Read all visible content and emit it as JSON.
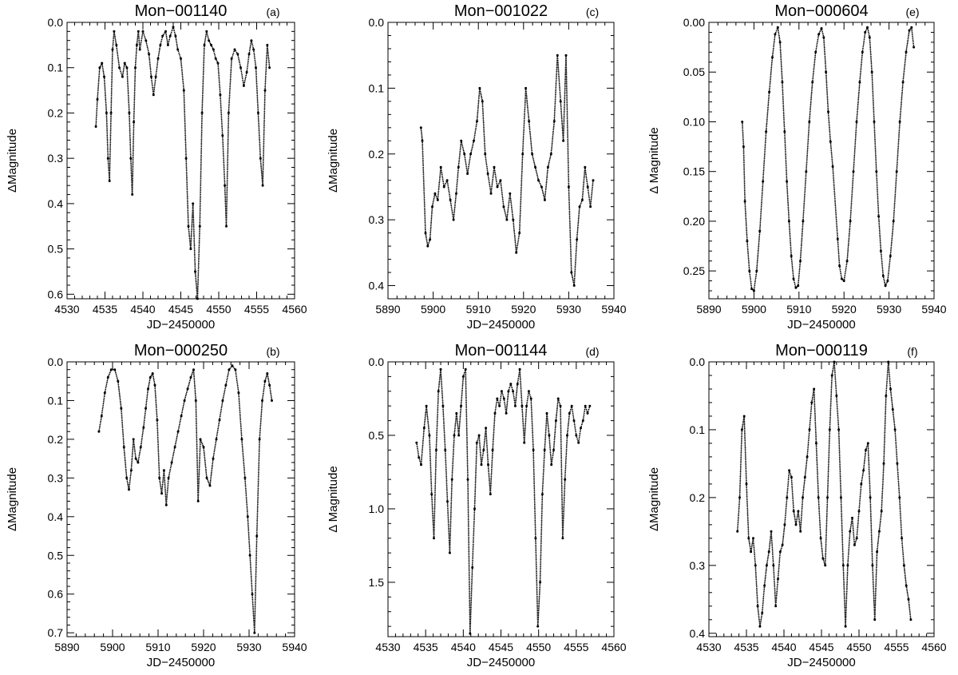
{
  "chart_data": [
    {
      "type": "scatter",
      "tag": "(a)",
      "title": "Mon−001140",
      "xlabel": "JD−2450000",
      "ylabel": "ΔMagnitude",
      "xlim": [
        4530,
        4560
      ],
      "ylim": [
        0.61,
        0.0
      ],
      "y_inverted": true,
      "xticks": [
        "4530",
        "4535",
        "4540",
        "4545",
        "4550",
        "4555",
        "4560"
      ],
      "yticks": [
        "0.0",
        "0.1",
        "0.2",
        "0.3",
        "0.4",
        "0.5",
        "0.6"
      ],
      "xtick_values": [
        4530,
        4535,
        4540,
        4545,
        4550,
        4555,
        4560
      ],
      "ytick_values": [
        0.0,
        0.1,
        0.2,
        0.3,
        0.4,
        0.5,
        0.6
      ],
      "x": [
        4533.8,
        4534.0,
        4534.3,
        4534.6,
        4534.9,
        4535.2,
        4535.4,
        4535.6,
        4535.8,
        4536.0,
        4536.2,
        4536.5,
        4536.9,
        4537.3,
        4537.6,
        4537.9,
        4538.2,
        4538.4,
        4538.6,
        4538.8,
        4539.0,
        4539.2,
        4539.4,
        4539.6,
        4540.0,
        4540.4,
        4540.8,
        4541.1,
        4541.4,
        4541.7,
        4542.0,
        4542.3,
        4542.6,
        4543.0,
        4543.3,
        4543.6,
        4544.0,
        4544.3,
        4544.6,
        4545.0,
        4545.4,
        4545.7,
        4546.0,
        4546.3,
        4546.6,
        4546.9,
        4547.2,
        4547.5,
        4547.8,
        4548.1,
        4548.4,
        4548.7,
        4549.0,
        4549.3,
        4549.6,
        4549.9,
        4550.2,
        4550.5,
        4550.8,
        4551.0,
        4551.3,
        4551.7,
        4552.1,
        4552.5,
        4552.9,
        4553.3,
        4553.7,
        4554.0,
        4554.3,
        4554.6,
        4554.9,
        4555.2,
        4555.5,
        4555.8,
        4556.1,
        4556.4,
        4556.7
      ],
      "y": [
        0.23,
        0.17,
        0.1,
        0.09,
        0.12,
        0.2,
        0.3,
        0.35,
        0.2,
        0.06,
        0.02,
        0.05,
        0.1,
        0.12,
        0.09,
        0.1,
        0.2,
        0.3,
        0.38,
        0.22,
        0.1,
        0.05,
        0.02,
        0.06,
        0.02,
        0.04,
        0.07,
        0.12,
        0.16,
        0.12,
        0.08,
        0.05,
        0.03,
        0.02,
        0.05,
        0.03,
        0.01,
        0.03,
        0.06,
        0.08,
        0.15,
        0.3,
        0.45,
        0.5,
        0.4,
        0.55,
        0.61,
        0.45,
        0.2,
        0.05,
        0.02,
        0.04,
        0.05,
        0.06,
        0.08,
        0.09,
        0.16,
        0.25,
        0.36,
        0.45,
        0.2,
        0.08,
        0.06,
        0.07,
        0.1,
        0.14,
        0.11,
        0.07,
        0.04,
        0.06,
        0.1,
        0.2,
        0.3,
        0.36,
        0.15,
        0.05,
        0.1
      ]
    },
    {
      "type": "scatter",
      "tag": "(b)",
      "title": "Mon−000250",
      "xlabel": "JD−2450000",
      "ylabel": "ΔMagnitude",
      "xlim": [
        5890,
        5940
      ],
      "ylim": [
        0.71,
        0.0
      ],
      "y_inverted": true,
      "xticks": [
        "5890",
        "5900",
        "5910",
        "5920",
        "5930",
        "5940"
      ],
      "yticks": [
        "0.0",
        "0.1",
        "0.2",
        "0.3",
        "0.4",
        "0.5",
        "0.6",
        "0.7"
      ],
      "xtick_values": [
        5890,
        5900,
        5910,
        5920,
        5930,
        5940
      ],
      "ytick_values": [
        0.0,
        0.1,
        0.2,
        0.3,
        0.4,
        0.5,
        0.6,
        0.7
      ],
      "x": [
        5897.0,
        5897.6,
        5898.3,
        5899.0,
        5899.7,
        5900.5,
        5901.2,
        5901.9,
        5902.5,
        5903.1,
        5903.6,
        5904.1,
        5904.6,
        5905.1,
        5905.6,
        5906.2,
        5906.8,
        5907.3,
        5907.8,
        5908.3,
        5908.8,
        5909.3,
        5909.8,
        5910.3,
        5910.8,
        5911.3,
        5911.8,
        5912.3,
        5913.0,
        5913.7,
        5914.4,
        5915.1,
        5915.8,
        5916.5,
        5917.2,
        5917.8,
        5918.3,
        5918.8,
        5919.3,
        5920.0,
        5920.7,
        5921.4,
        5922.1,
        5922.8,
        5923.5,
        5924.2,
        5924.9,
        5925.6,
        5926.3,
        5927.0,
        5927.7,
        5928.4,
        5929.1,
        5929.7,
        5930.2,
        5930.7,
        5931.2,
        5931.7,
        5932.3,
        5932.9,
        5933.5,
        5934.0,
        5934.5,
        5935.0
      ],
      "y": [
        0.18,
        0.14,
        0.08,
        0.04,
        0.02,
        0.02,
        0.05,
        0.12,
        0.22,
        0.3,
        0.33,
        0.28,
        0.2,
        0.25,
        0.26,
        0.22,
        0.17,
        0.12,
        0.07,
        0.04,
        0.03,
        0.06,
        0.15,
        0.3,
        0.34,
        0.28,
        0.37,
        0.3,
        0.26,
        0.22,
        0.18,
        0.14,
        0.1,
        0.07,
        0.04,
        0.02,
        0.1,
        0.36,
        0.2,
        0.22,
        0.3,
        0.32,
        0.25,
        0.2,
        0.15,
        0.1,
        0.06,
        0.02,
        0.01,
        0.02,
        0.08,
        0.2,
        0.3,
        0.4,
        0.5,
        0.6,
        0.7,
        0.45,
        0.2,
        0.1,
        0.05,
        0.03,
        0.06,
        0.1
      ]
    },
    {
      "type": "scatter",
      "tag": "(c)",
      "title": "Mon−001022",
      "xlabel": "JD−2450000",
      "ylabel": "ΔMagnitude",
      "xlim": [
        5890,
        5940
      ],
      "ylim": [
        0.42,
        0.0
      ],
      "y_inverted": true,
      "xticks": [
        "5890",
        "5900",
        "5910",
        "5920",
        "5930",
        "5940"
      ],
      "yticks": [
        "0.0",
        "0.1",
        "0.2",
        "0.3",
        "0.4"
      ],
      "xtick_values": [
        5890,
        5900,
        5910,
        5920,
        5930,
        5940
      ],
      "ytick_values": [
        0.0,
        0.1,
        0.2,
        0.3,
        0.4
      ],
      "x": [
        5897.3,
        5897.6,
        5898.3,
        5898.8,
        5899.3,
        5899.8,
        5900.4,
        5901.0,
        5901.7,
        5902.4,
        5903.1,
        5903.8,
        5904.5,
        5905.1,
        5905.6,
        5906.2,
        5906.9,
        5907.6,
        5908.3,
        5909.0,
        5909.7,
        5910.3,
        5910.9,
        5911.5,
        5912.1,
        5912.8,
        5913.5,
        5914.2,
        5914.9,
        5915.6,
        5916.3,
        5917.0,
        5917.7,
        5918.4,
        5919.1,
        5919.8,
        5920.5,
        5921.2,
        5921.9,
        5922.6,
        5923.3,
        5924.0,
        5924.7,
        5925.4,
        5926.1,
        5926.8,
        5927.5,
        5928.2,
        5928.8,
        5929.4,
        5930.0,
        5930.6,
        5931.2,
        5931.8,
        5932.4,
        5933.0,
        5933.6,
        5934.2,
        5934.8,
        5935.4
      ],
      "y": [
        0.16,
        0.18,
        0.32,
        0.34,
        0.33,
        0.28,
        0.26,
        0.27,
        0.22,
        0.25,
        0.24,
        0.27,
        0.3,
        0.26,
        0.22,
        0.18,
        0.2,
        0.23,
        0.2,
        0.18,
        0.15,
        0.1,
        0.12,
        0.2,
        0.23,
        0.26,
        0.22,
        0.25,
        0.24,
        0.28,
        0.3,
        0.26,
        0.3,
        0.35,
        0.32,
        0.2,
        0.1,
        0.15,
        0.2,
        0.22,
        0.24,
        0.25,
        0.27,
        0.22,
        0.2,
        0.15,
        0.05,
        0.12,
        0.18,
        0.05,
        0.25,
        0.38,
        0.4,
        0.33,
        0.28,
        0.27,
        0.22,
        0.25,
        0.28,
        0.24
      ]
    },
    {
      "type": "scatter",
      "tag": "(d)",
      "title": "Mon−001144",
      "xlabel": "JD−2450000",
      "ylabel": "Δ Magnitude",
      "xlim": [
        4530,
        4560
      ],
      "ylim": [
        1.87,
        0.0
      ],
      "y_inverted": true,
      "xticks": [
        "4530",
        "4535",
        "4540",
        "4545",
        "4550",
        "4555",
        "4560"
      ],
      "yticks": [
        "0.0",
        "0.5",
        "1.0",
        "1.5"
      ],
      "xtick_values": [
        4530,
        4535,
        4540,
        4545,
        4550,
        4555,
        4560
      ],
      "ytick_values": [
        0.0,
        0.5,
        1.0,
        1.5
      ],
      "x": [
        4533.8,
        4534.1,
        4534.4,
        4534.8,
        4535.1,
        4535.5,
        4535.8,
        4536.1,
        4536.4,
        4536.7,
        4537.0,
        4537.3,
        4537.6,
        4537.9,
        4538.2,
        4538.5,
        4538.8,
        4539.1,
        4539.4,
        4539.7,
        4540.0,
        4540.3,
        4540.6,
        4540.9,
        4541.2,
        4541.5,
        4541.8,
        4542.1,
        4542.4,
        4542.7,
        4543.0,
        4543.3,
        4543.6,
        4543.9,
        4544.2,
        4544.5,
        4544.8,
        4545.1,
        4545.4,
        4545.7,
        4546.0,
        4546.3,
        4546.6,
        4546.9,
        4547.2,
        4547.5,
        4547.8,
        4548.1,
        4548.4,
        4548.7,
        4549.0,
        4549.3,
        4549.6,
        4549.9,
        4550.2,
        4550.5,
        4550.8,
        4551.1,
        4551.4,
        4551.7,
        4552.0,
        4552.3,
        4552.6,
        4552.9,
        4553.2,
        4553.5,
        4553.8,
        4554.1,
        4554.4,
        4554.7,
        4555.0,
        4555.3,
        4555.6,
        4555.9,
        4556.2,
        4556.5,
        4556.8
      ],
      "y": [
        0.55,
        0.65,
        0.7,
        0.45,
        0.3,
        0.5,
        0.9,
        1.2,
        0.6,
        0.2,
        0.05,
        0.3,
        0.6,
        0.95,
        1.3,
        0.8,
        0.5,
        0.35,
        0.5,
        0.3,
        0.1,
        0.05,
        0.8,
        1.85,
        1.4,
        1.0,
        0.55,
        0.5,
        0.7,
        0.6,
        0.45,
        0.7,
        0.9,
        0.6,
        0.35,
        0.25,
        0.3,
        0.2,
        0.25,
        0.35,
        0.2,
        0.15,
        0.2,
        0.3,
        0.15,
        0.05,
        0.3,
        0.55,
        0.3,
        0.2,
        0.25,
        0.6,
        1.2,
        1.8,
        1.5,
        0.9,
        0.6,
        0.35,
        0.5,
        0.7,
        0.6,
        0.4,
        0.25,
        0.3,
        1.2,
        0.8,
        0.5,
        0.35,
        0.3,
        0.4,
        0.5,
        0.55,
        0.45,
        0.4,
        0.3,
        0.35,
        0.3
      ]
    },
    {
      "type": "scatter",
      "tag": "(e)",
      "title": "Mon−000604",
      "xlabel": "JD−2450000",
      "ylabel": "Δ Magnitude",
      "xlim": [
        5890,
        5940
      ],
      "ylim": [
        0.278,
        0.0
      ],
      "y_inverted": true,
      "xticks": [
        "5890",
        "5900",
        "5910",
        "5920",
        "5930",
        "5940"
      ],
      "yticks": [
        "0.00",
        "0.05",
        "0.10",
        "0.15",
        "0.20",
        "0.25"
      ],
      "xtick_values": [
        5890,
        5900,
        5910,
        5920,
        5930,
        5940
      ],
      "ytick_values": [
        0.0,
        0.05,
        0.1,
        0.15,
        0.2,
        0.25
      ],
      "x": [
        5897.4,
        5897.7,
        5898.0,
        5898.5,
        5899.0,
        5899.5,
        5900.0,
        5900.6,
        5901.3,
        5902.0,
        5902.7,
        5903.4,
        5904.1,
        5904.7,
        5905.3,
        5905.8,
        5906.3,
        5906.8,
        5907.3,
        5907.8,
        5908.3,
        5908.8,
        5909.3,
        5909.8,
        5910.3,
        5910.9,
        5911.6,
        5912.3,
        5913.0,
        5913.7,
        5914.4,
        5915.0,
        5915.5,
        5916.0,
        5916.5,
        5917.0,
        5917.5,
        5918.6,
        5919.0,
        5919.5,
        5920.0,
        5920.7,
        5921.4,
        5922.1,
        5922.8,
        5923.5,
        5924.1,
        5924.7,
        5925.2,
        5925.7,
        5926.2,
        5926.7,
        5927.2,
        5927.7,
        5928.2,
        5928.7,
        5929.2,
        5929.7,
        5930.3,
        5931.0,
        5931.7,
        5932.4,
        5933.1,
        5933.8,
        5934.5,
        5935.0,
        5935.5
      ],
      "y": [
        0.1,
        0.125,
        0.18,
        0.22,
        0.25,
        0.268,
        0.27,
        0.25,
        0.21,
        0.16,
        0.11,
        0.07,
        0.035,
        0.012,
        0.005,
        0.02,
        0.06,
        0.11,
        0.16,
        0.2,
        0.235,
        0.258,
        0.267,
        0.265,
        0.24,
        0.2,
        0.15,
        0.1,
        0.06,
        0.03,
        0.012,
        0.006,
        0.015,
        0.05,
        0.09,
        0.12,
        0.145,
        0.218,
        0.245,
        0.258,
        0.26,
        0.24,
        0.2,
        0.15,
        0.1,
        0.06,
        0.03,
        0.01,
        0.005,
        0.015,
        0.05,
        0.1,
        0.15,
        0.195,
        0.23,
        0.255,
        0.265,
        0.26,
        0.235,
        0.2,
        0.15,
        0.1,
        0.06,
        0.03,
        0.008,
        0.005,
        0.025
      ]
    },
    {
      "type": "scatter",
      "tag": "(f)",
      "title": "Mon−000119",
      "xlabel": "JD−2450000",
      "ylabel": "ΔMagnitude",
      "xlim": [
        4530,
        4560
      ],
      "ylim": [
        0.405,
        0.0
      ],
      "y_inverted": true,
      "xticks": [
        "4530",
        "4535",
        "4540",
        "4545",
        "4550",
        "4555",
        "4560"
      ],
      "yticks": [
        "0.0",
        "0.1",
        "0.2",
        "0.3",
        "0.4"
      ],
      "xtick_values": [
        4530,
        4535,
        4540,
        4545,
        4550,
        4555,
        4560
      ],
      "ytick_values": [
        0.0,
        0.1,
        0.2,
        0.3,
        0.4
      ],
      "x": [
        4533.8,
        4534.1,
        4534.4,
        4534.7,
        4535.0,
        4535.3,
        4535.6,
        4535.9,
        4536.2,
        4536.5,
        4536.8,
        4537.1,
        4537.4,
        4537.7,
        4538.0,
        4538.3,
        4538.6,
        4538.9,
        4539.2,
        4539.5,
        4539.8,
        4540.1,
        4540.4,
        4540.7,
        4541.0,
        4541.3,
        4541.6,
        4541.9,
        4542.2,
        4542.5,
        4542.8,
        4543.1,
        4543.4,
        4543.7,
        4544.0,
        4544.3,
        4544.6,
        4544.9,
        4545.2,
        4545.5,
        4545.8,
        4546.1,
        4546.4,
        4546.7,
        4547.0,
        4547.3,
        4547.6,
        4547.9,
        4548.2,
        4548.5,
        4548.8,
        4549.1,
        4549.4,
        4549.7,
        4550.0,
        4550.3,
        4550.6,
        4550.9,
        4551.2,
        4551.5,
        4551.8,
        4552.1,
        4552.4,
        4552.7,
        4553.0,
        4553.3,
        4553.6,
        4553.9,
        4554.2,
        4554.5,
        4554.8,
        4555.1,
        4555.4,
        4555.7,
        4556.0,
        4556.3,
        4556.6,
        4556.9
      ],
      "y": [
        0.25,
        0.2,
        0.1,
        0.08,
        0.18,
        0.26,
        0.28,
        0.26,
        0.3,
        0.36,
        0.39,
        0.37,
        0.33,
        0.3,
        0.28,
        0.25,
        0.3,
        0.36,
        0.32,
        0.28,
        0.27,
        0.24,
        0.2,
        0.16,
        0.17,
        0.22,
        0.24,
        0.22,
        0.25,
        0.2,
        0.17,
        0.14,
        0.1,
        0.06,
        0.04,
        0.12,
        0.2,
        0.26,
        0.29,
        0.3,
        0.2,
        0.1,
        0.02,
        0.0,
        0.05,
        0.1,
        0.2,
        0.3,
        0.39,
        0.3,
        0.25,
        0.23,
        0.27,
        0.26,
        0.22,
        0.18,
        0.16,
        0.13,
        0.12,
        0.2,
        0.3,
        0.38,
        0.28,
        0.25,
        0.22,
        0.15,
        0.05,
        0.0,
        0.04,
        0.07,
        0.1,
        0.15,
        0.2,
        0.26,
        0.3,
        0.33,
        0.35,
        0.38
      ]
    }
  ],
  "colors": {
    "marks": "#000000",
    "background": "#ffffff"
  }
}
